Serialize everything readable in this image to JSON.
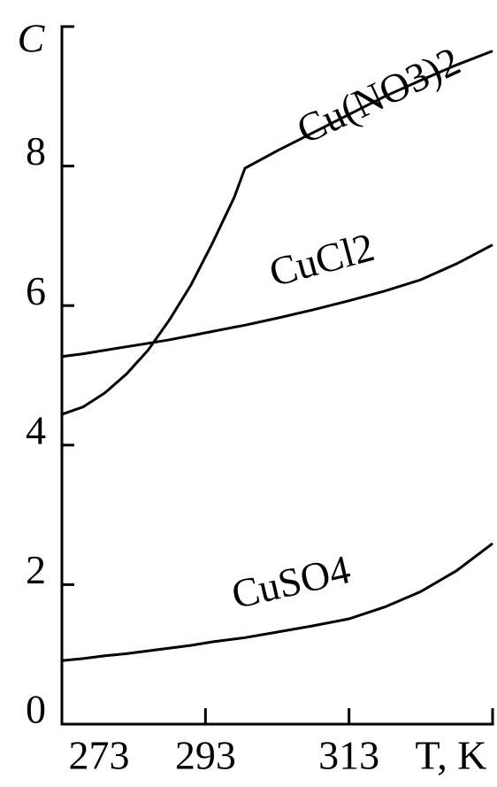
{
  "chart_data": {
    "type": "line",
    "y_label": "C",
    "x_label": "T, K",
    "x": [
      273,
      276,
      279,
      282,
      285,
      288,
      291,
      294,
      297,
      298.5,
      303,
      308,
      313,
      318,
      323,
      328,
      333
    ],
    "series": [
      {
        "name": "Cu(NO3)2",
        "color": "#000000",
        "values": [
          4.44,
          4.55,
          4.75,
          5.02,
          5.36,
          5.8,
          6.3,
          6.9,
          7.55,
          7.97,
          8.22,
          8.48,
          8.74,
          9.0,
          9.23,
          9.45,
          9.65
        ]
      },
      {
        "name": "CuCl2",
        "color": "#000000",
        "values": [
          5.27,
          5.31,
          5.36,
          5.41,
          5.46,
          5.51,
          5.57,
          5.63,
          5.69,
          5.72,
          5.82,
          5.94,
          6.07,
          6.21,
          6.37,
          6.6,
          6.87
        ]
      },
      {
        "name": "CuSO4",
        "color": "#000000",
        "values": [
          0.91,
          0.94,
          0.98,
          1.01,
          1.05,
          1.09,
          1.13,
          1.18,
          1.22,
          1.24,
          1.32,
          1.41,
          1.51,
          1.68,
          1.9,
          2.2,
          2.59
        ]
      }
    ],
    "xlim": [
      273,
      333
    ],
    "ylim": [
      0,
      10
    ],
    "xticks": [
      273,
      293,
      313
    ],
    "yticks": [
      0,
      2,
      4,
      6,
      8
    ],
    "grid": false
  }
}
